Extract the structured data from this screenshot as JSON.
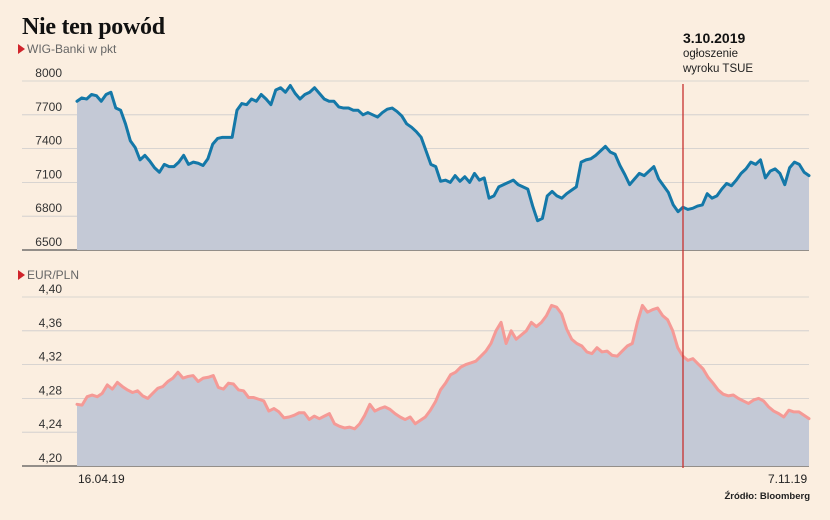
{
  "title": "Nie ten powód",
  "source": "Źródło: Bloomberg",
  "annotation": {
    "date": "3.10.2019",
    "text_line1": "ogłoszenie",
    "text_line2": "wyroku TSUE"
  },
  "colors": {
    "background": "#fbeee0",
    "area": "#c4c9d6",
    "wig_line": "#1478a8",
    "eur_line": "#f59a96",
    "marker": "#c7312f",
    "subtitle_triangle": "#d0242b"
  },
  "chart_data": [
    {
      "type": "area",
      "subtitle": "WIG-Banki w pkt",
      "x_start_label": "16.04.19",
      "x_end_label": "7.11.19",
      "ylim": [
        6500,
        8000
      ],
      "yticks": [
        "8000",
        "7700",
        "7400",
        "7100",
        "6800",
        "6500"
      ],
      "ytick_values": [
        8000,
        7700,
        7400,
        7100,
        6800,
        6500
      ],
      "values": [
        7820,
        7850,
        7840,
        7880,
        7870,
        7820,
        7880,
        7900,
        7760,
        7740,
        7620,
        7470,
        7410,
        7300,
        7340,
        7290,
        7230,
        7190,
        7260,
        7240,
        7240,
        7280,
        7340,
        7260,
        7280,
        7270,
        7250,
        7310,
        7440,
        7490,
        7500,
        7500,
        7500,
        7740,
        7800,
        7790,
        7840,
        7820,
        7880,
        7840,
        7790,
        7920,
        7940,
        7900,
        7960,
        7890,
        7840,
        7880,
        7900,
        7940,
        7890,
        7840,
        7820,
        7820,
        7770,
        7760,
        7760,
        7740,
        7740,
        7700,
        7720,
        7700,
        7680,
        7720,
        7750,
        7760,
        7730,
        7690,
        7620,
        7590,
        7550,
        7500,
        7380,
        7260,
        7240,
        7110,
        7120,
        7100,
        7160,
        7110,
        7150,
        7100,
        7180,
        7120,
        7140,
        6960,
        6980,
        7060,
        7080,
        7100,
        7120,
        7080,
        7060,
        7040,
        6890,
        6760,
        6780,
        6980,
        7020,
        6980,
        6960,
        7000,
        7030,
        7060,
        7280,
        7300,
        7310,
        7340,
        7380,
        7420,
        7370,
        7350,
        7250,
        7170,
        7080,
        7130,
        7180,
        7160,
        7200,
        7240,
        7130,
        7070,
        7010,
        6900,
        6840,
        6880,
        6860,
        6870,
        6890,
        6900,
        7000,
        6960,
        6980,
        7040,
        7090,
        7070,
        7120,
        7180,
        7220,
        7280,
        7260,
        7300,
        7140,
        7200,
        7220,
        7180,
        7080,
        7230,
        7280,
        7260,
        7190,
        7160
      ]
    },
    {
      "type": "area",
      "subtitle": "EUR/PLN",
      "x_start_label": "16.04.19",
      "x_end_label": "7.11.19",
      "ylim": [
        4.2,
        4.4
      ],
      "yticks": [
        "4,40",
        "4,36",
        "4,32",
        "4,28",
        "4,24",
        "4,20"
      ],
      "ytick_values": [
        4.4,
        4.36,
        4.32,
        4.28,
        4.24,
        4.2
      ],
      "values": [
        4.273,
        4.272,
        4.282,
        4.284,
        4.282,
        4.286,
        4.296,
        4.291,
        4.299,
        4.294,
        4.29,
        4.287,
        4.289,
        4.283,
        4.28,
        4.286,
        4.292,
        4.294,
        4.3,
        4.304,
        4.311,
        4.304,
        4.306,
        4.307,
        4.3,
        4.304,
        4.305,
        4.307,
        4.293,
        4.291,
        4.298,
        4.297,
        4.29,
        4.289,
        4.281,
        4.281,
        4.279,
        4.277,
        4.265,
        4.268,
        4.264,
        4.257,
        4.258,
        4.26,
        4.263,
        4.263,
        4.255,
        4.259,
        4.256,
        4.259,
        4.262,
        4.25,
        4.247,
        4.245,
        4.246,
        4.244,
        4.25,
        4.26,
        4.273,
        4.265,
        4.268,
        4.27,
        4.267,
        4.262,
        4.258,
        4.255,
        4.258,
        4.25,
        4.254,
        4.258,
        4.266,
        4.276,
        4.29,
        4.298,
        4.308,
        4.311,
        4.317,
        4.32,
        4.322,
        4.324,
        4.33,
        4.336,
        4.345,
        4.36,
        4.37,
        4.345,
        4.36,
        4.35,
        4.355,
        4.36,
        4.37,
        4.365,
        4.37,
        4.378,
        4.39,
        4.388,
        4.38,
        4.362,
        4.35,
        4.345,
        4.342,
        4.335,
        4.333,
        4.34,
        4.335,
        4.336,
        4.331,
        4.33,
        4.336,
        4.342,
        4.345,
        4.37,
        4.39,
        4.382,
        4.385,
        4.387,
        4.378,
        4.373,
        4.36,
        4.34,
        4.33,
        4.325,
        4.327,
        4.321,
        4.315,
        4.305,
        4.298,
        4.29,
        4.285,
        4.283,
        4.284,
        4.28,
        4.277,
        4.274,
        4.278,
        4.28,
        4.277,
        4.27,
        4.265,
        4.262,
        4.258,
        4.266,
        4.264,
        4.264,
        4.26,
        4.256
      ]
    }
  ]
}
